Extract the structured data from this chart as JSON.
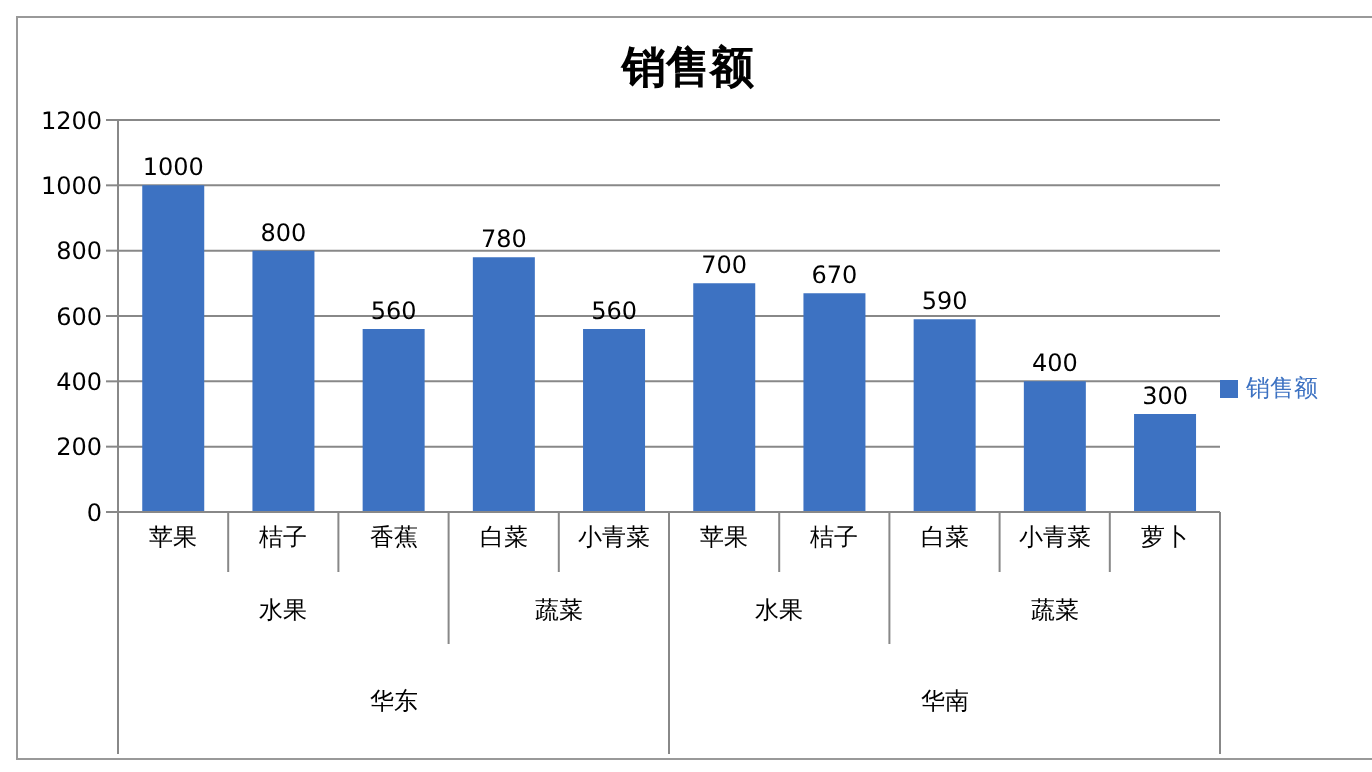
{
  "chart_data": {
    "type": "bar",
    "title": "销售额",
    "categories": [
      "苹果",
      "桔子",
      "香蕉",
      "白菜",
      "小青菜",
      "苹果",
      "桔子",
      "白菜",
      "小青菜",
      "萝卜"
    ],
    "series": [
      {
        "name": "销售额",
        "color": "#3d72c2",
        "values": [
          1000,
          800,
          560,
          780,
          560,
          700,
          670,
          590,
          400,
          300
        ]
      }
    ],
    "ylim": [
      0,
      1200
    ],
    "yticks": [
      0,
      200,
      400,
      600,
      800,
      1000,
      1200
    ],
    "grid": "y",
    "legend": "right",
    "data_labels": true,
    "annotations": [
      "水果",
      "蔬菜",
      "水果",
      "蔬菜",
      "华东",
      "华南"
    ]
  }
}
